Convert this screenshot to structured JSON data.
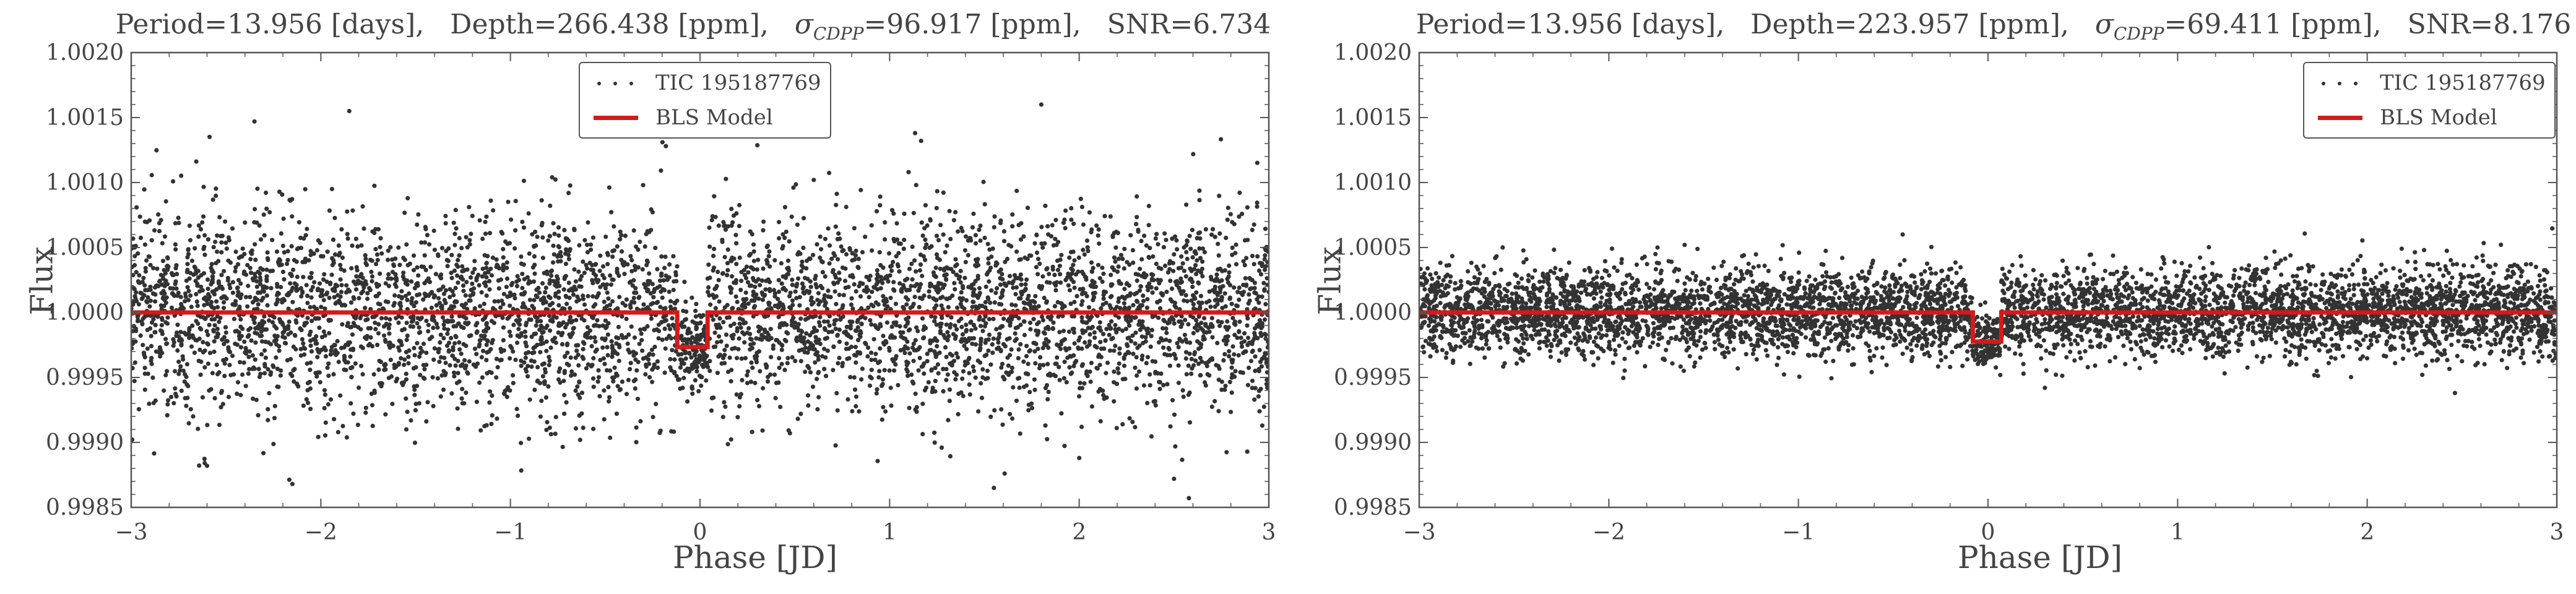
{
  "panels": [
    {
      "title": {
        "period": "Period=13.956 [days],",
        "depth": "Depth=266.438 [ppm],",
        "sigma_symbol": "σ",
        "sigma_sub": "CDPP",
        "sigma_value": "=96.917 [ppm],",
        "snr": "SNR=6.734"
      },
      "legend": {
        "position": "upper-center",
        "scatter_label": "TIC 195187769",
        "model_label": "BLS Model"
      },
      "xlabel": "Phase [JD]",
      "ylabel": "Flux"
    },
    {
      "title": {
        "period": "Period=13.956 [days],",
        "depth": "Depth=223.957 [ppm],",
        "sigma_symbol": "σ",
        "sigma_sub": "CDPP",
        "sigma_value": "=69.411 [ppm],",
        "snr": "SNR=8.176"
      },
      "legend": {
        "position": "upper-right",
        "scatter_label": "TIC 195187769",
        "model_label": "BLS Model"
      },
      "xlabel": "Phase [JD]",
      "ylabel": "Flux"
    }
  ],
  "chart_data": [
    {
      "type": "scatter",
      "title": "Period=13.956 [days], Depth=266.438 [ppm], σCDPP=96.917 [ppm], SNR=6.734",
      "xlabel": "Phase [JD]",
      "ylabel": "Flux",
      "xlim": [
        -3,
        3
      ],
      "ylim": [
        0.9985,
        1.002
      ],
      "xticks": [
        -3,
        -2,
        -1,
        0,
        1,
        2,
        3
      ],
      "xtick_labels": [
        "−3",
        "−2",
        "−1",
        "0",
        "1",
        "2",
        "3"
      ],
      "yticks": [
        0.9985,
        0.999,
        0.9995,
        1.0,
        1.0005,
        1.001,
        1.0015,
        1.002
      ],
      "ytick_labels": [
        "0.9985",
        "0.9990",
        "0.9995",
        "1.0000",
        "1.0005",
        "1.0010",
        "1.0015",
        "1.0020"
      ],
      "series": [
        {
          "name": "TIC 195187769",
          "kind": "scatter",
          "color": "#333333",
          "n_points": 5200,
          "scatter_std": 0.00038,
          "transit_dip_std": 0.00016,
          "seed": 11,
          "outliers": [
            [
              -2.35,
              1.00147
            ],
            [
              -1.85,
              1.00155
            ],
            [
              1.8,
              1.0016
            ],
            [
              -0.18,
              1.00128
            ],
            [
              0.6,
              1.00102
            ],
            [
              -2.15,
              0.99868
            ],
            [
              -2.6,
              0.99882
            ],
            [
              1.55,
              0.99865
            ],
            [
              2.0,
              0.99888
            ],
            [
              2.5,
              0.99872
            ],
            [
              -0.3,
              1.00098
            ],
            [
              1.1,
              1.00108
            ]
          ]
        },
        {
          "name": "BLS Model",
          "kind": "step",
          "color": "#d41a1a",
          "baseline": 1.0,
          "transit_depth": 0.000266,
          "transit_start": -0.12,
          "transit_end": 0.04
        }
      ]
    },
    {
      "type": "scatter",
      "title": "Period=13.956 [days], Depth=223.957 [ppm], σCDPP=69.411 [ppm], SNR=8.176",
      "xlabel": "Phase [JD]",
      "ylabel": "Flux",
      "xlim": [
        -3,
        3
      ],
      "ylim": [
        0.9985,
        1.002
      ],
      "xticks": [
        -3,
        -2,
        -1,
        0,
        1,
        2,
        3
      ],
      "xtick_labels": [
        "−3",
        "−2",
        "−1",
        "0",
        "1",
        "2",
        "3"
      ],
      "yticks": [
        0.9985,
        0.999,
        0.9995,
        1.0,
        1.0005,
        1.001,
        1.0015,
        1.002
      ],
      "ytick_labels": [
        "0.9985",
        "0.9990",
        "0.9995",
        "1.0000",
        "1.0005",
        "1.0010",
        "1.0015",
        "1.0020"
      ],
      "series": [
        {
          "name": "TIC 195187769",
          "kind": "scatter",
          "color": "#333333",
          "n_points": 5600,
          "scatter_std": 0.00017,
          "transit_dip_std": 0.0001,
          "seed": 29,
          "outliers": [
            [
              -0.45,
              1.0006
            ],
            [
              -1.6,
              1.00052
            ],
            [
              2.3,
              1.00048
            ],
            [
              -0.2,
              0.99958
            ],
            [
              0.3,
              0.99942
            ]
          ]
        },
        {
          "name": "BLS Model",
          "kind": "step",
          "color": "#d41a1a",
          "baseline": 1.0,
          "transit_depth": 0.000224,
          "transit_start": -0.08,
          "transit_end": 0.07
        }
      ]
    }
  ]
}
